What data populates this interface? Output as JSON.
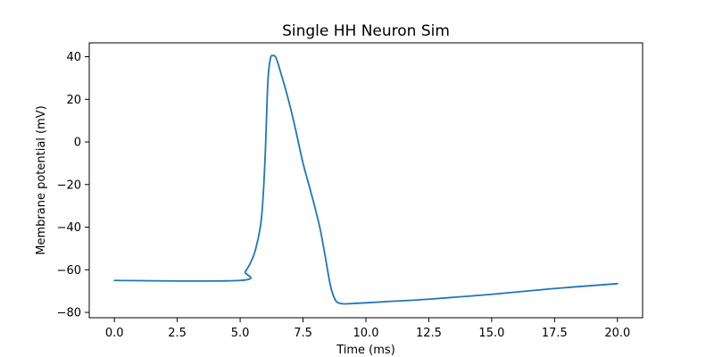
{
  "chart_data": {
    "type": "line",
    "title": "Single HH Neuron Sim",
    "xlabel": "Time (ms)",
    "ylabel": "Membrane potential (mV)",
    "xlim": [
      -1.0,
      21.0
    ],
    "ylim": [
      -82.5,
      46.5
    ],
    "xticks": [
      0.0,
      2.5,
      5.0,
      7.5,
      10.0,
      12.5,
      15.0,
      17.5,
      20.0
    ],
    "xtick_labels": [
      "0.0",
      "2.5",
      "5.0",
      "7.5",
      "10.0",
      "12.5",
      "15.0",
      "17.5",
      "20.0"
    ],
    "yticks": [
      -80,
      -60,
      -40,
      -20,
      0,
      20,
      40
    ],
    "ytick_labels": [
      "−80",
      "−60",
      "−40",
      "−20",
      "0",
      "20",
      "40"
    ],
    "grid": false,
    "legend": "none",
    "series": [
      {
        "color": "#1f77b4",
        "x": [
          0.0,
          5.0,
          5.2,
          5.4,
          5.6,
          5.8,
          5.9,
          6.0,
          6.1,
          6.2,
          6.3,
          6.4,
          6.5,
          6.6,
          6.8,
          7.0,
          7.2,
          7.5,
          7.8,
          8.0,
          8.2,
          8.4,
          8.6,
          8.8,
          9.0,
          9.2,
          9.5,
          10.0,
          11.0,
          12.5,
          15.0,
          17.5,
          20.0
        ],
        "y": [
          -65.0,
          -65.0,
          -61.0,
          -57.0,
          -51.0,
          -40.0,
          -28.0,
          -5.0,
          28.0,
          39.0,
          40.5,
          40.0,
          37.0,
          33.0,
          25.0,
          16.0,
          6.0,
          -10.0,
          -23.0,
          -32.0,
          -42.0,
          -55.0,
          -68.0,
          -74.5,
          -75.8,
          -76.0,
          -75.8,
          -75.5,
          -74.8,
          -73.8,
          -71.5,
          -68.8,
          -66.5
        ]
      }
    ]
  }
}
